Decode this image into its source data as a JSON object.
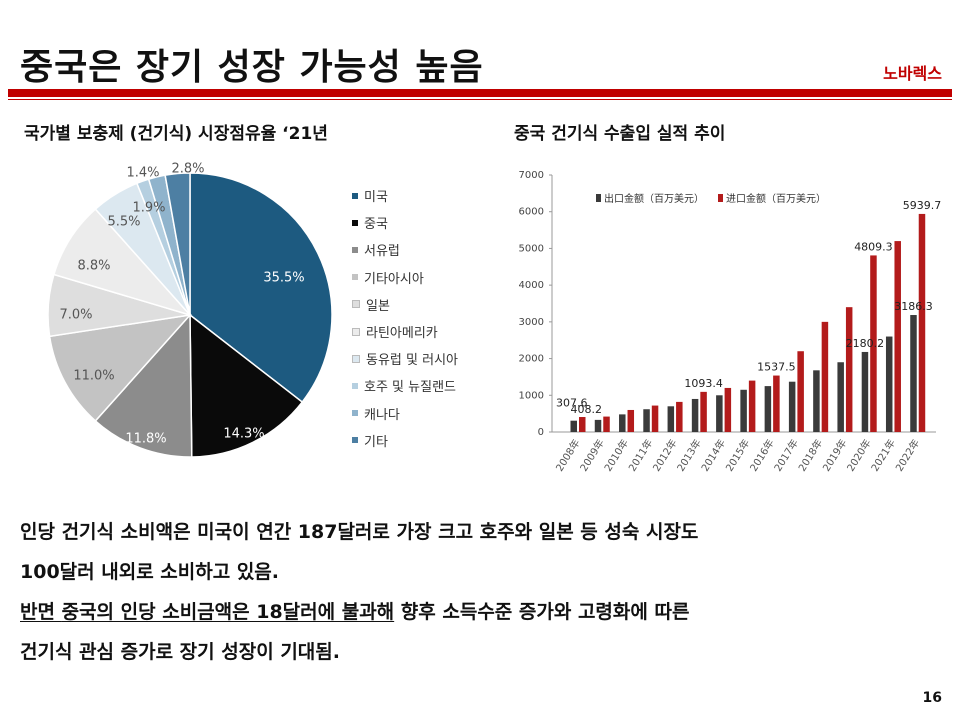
{
  "header": {
    "title": "중국은 장기 성장 가능성 높음",
    "brand": "노바렉스"
  },
  "colors": {
    "accent": "#c00000"
  },
  "left_chart_title": "국가별 보충제 (건기식) 시장점유율 ‘21년",
  "right_chart_title": "중국 건기식 수출입 실적 추이",
  "chart_data": [
    {
      "type": "pie",
      "slices": [
        {
          "name": "미국",
          "value": 35.5,
          "label": "35.5%",
          "color": "#1d5a80"
        },
        {
          "name": "중국",
          "value": 14.3,
          "label": "14.3%",
          "color": "#0a0a0a"
        },
        {
          "name": "서유럽",
          "value": 11.8,
          "label": "11.8%",
          "color": "#8c8c8c"
        },
        {
          "name": "기타아시아",
          "value": 11.0,
          "label": "11.0%",
          "color": "#c3c3c3"
        },
        {
          "name": "일본",
          "value": 7.0,
          "label": "7.0%",
          "color": "#dedede"
        },
        {
          "name": "라틴아메리카",
          "value": 8.8,
          "label": "8.8%",
          "color": "#ececec"
        },
        {
          "name": "동유럽 및 러시아",
          "value": 5.5,
          "label": "5.5%",
          "color": "#dce8f0"
        },
        {
          "name": "호주 및 뉴질랜드",
          "value": 1.4,
          "label": "1.4%",
          "color": "#b5cfe0"
        },
        {
          "name": "캐나다",
          "value": 1.9,
          "label": "1.9%",
          "color": "#8fb3cc"
        },
        {
          "name": "기타",
          "value": 2.8,
          "label": "2.8%",
          "color": "#4d7fa3"
        }
      ],
      "legend_placement": "right"
    },
    {
      "type": "bar",
      "categories": [
        "2008年",
        "2009年",
        "2010年",
        "2011年",
        "2012年",
        "2013年",
        "2014年",
        "2015年",
        "2016年",
        "2017年",
        "2018年",
        "2019年",
        "2020年",
        "2021年",
        "2022年"
      ],
      "series": [
        {
          "name": "出口金额（百万美元）",
          "color": "#3a3a3a",
          "values": [
            307.6,
            330,
            480,
            620,
            700,
            900,
            1000,
            1150,
            1250,
            1370,
            1680,
            1900,
            2180.2,
            2600,
            3186.3
          ]
        },
        {
          "name": "进口金额（百万美元）",
          "color": "#b31b1b",
          "values": [
            408.2,
            420,
            600,
            720,
            820,
            1093.4,
            1200,
            1400,
            1537.5,
            2200,
            3000,
            3400,
            4809.3,
            5200,
            5939.7
          ]
        }
      ],
      "data_labels": [
        {
          "series": 0,
          "index": 0,
          "text": "307.6"
        },
        {
          "series": 1,
          "index": 0,
          "text": "408.2"
        },
        {
          "series": 1,
          "index": 5,
          "text": "1093.4"
        },
        {
          "series": 1,
          "index": 8,
          "text": "1537.5"
        },
        {
          "series": 0,
          "index": 12,
          "text": "2180.2"
        },
        {
          "series": 1,
          "index": 12,
          "text": "4809.3"
        },
        {
          "series": 0,
          "index": 14,
          "text": "3186.3"
        },
        {
          "series": 1,
          "index": 14,
          "text": "5939.7"
        }
      ],
      "yticks": [
        0,
        1000,
        2000,
        3000,
        4000,
        5000,
        6000,
        7000
      ],
      "ylim": [
        0,
        7000
      ],
      "grid": false,
      "legend_placement": "top-left"
    }
  ],
  "body": {
    "line1": "인당 건기식 소비액은 미국이 연간 187달러로 가장 크고 호주와 일본 등 성숙 시장도",
    "line2": "100달러 내외로 소비하고 있음.",
    "line3a": "반면 ",
    "line3b": "중국의 인당 소비금액은 18달러에 불과해",
    "line3c": " 향후 소득수준 증가와 고령화에 따른",
    "line4": "건기식 관심 증가로 장기 성장이 기대됨."
  },
  "page_number": "16"
}
